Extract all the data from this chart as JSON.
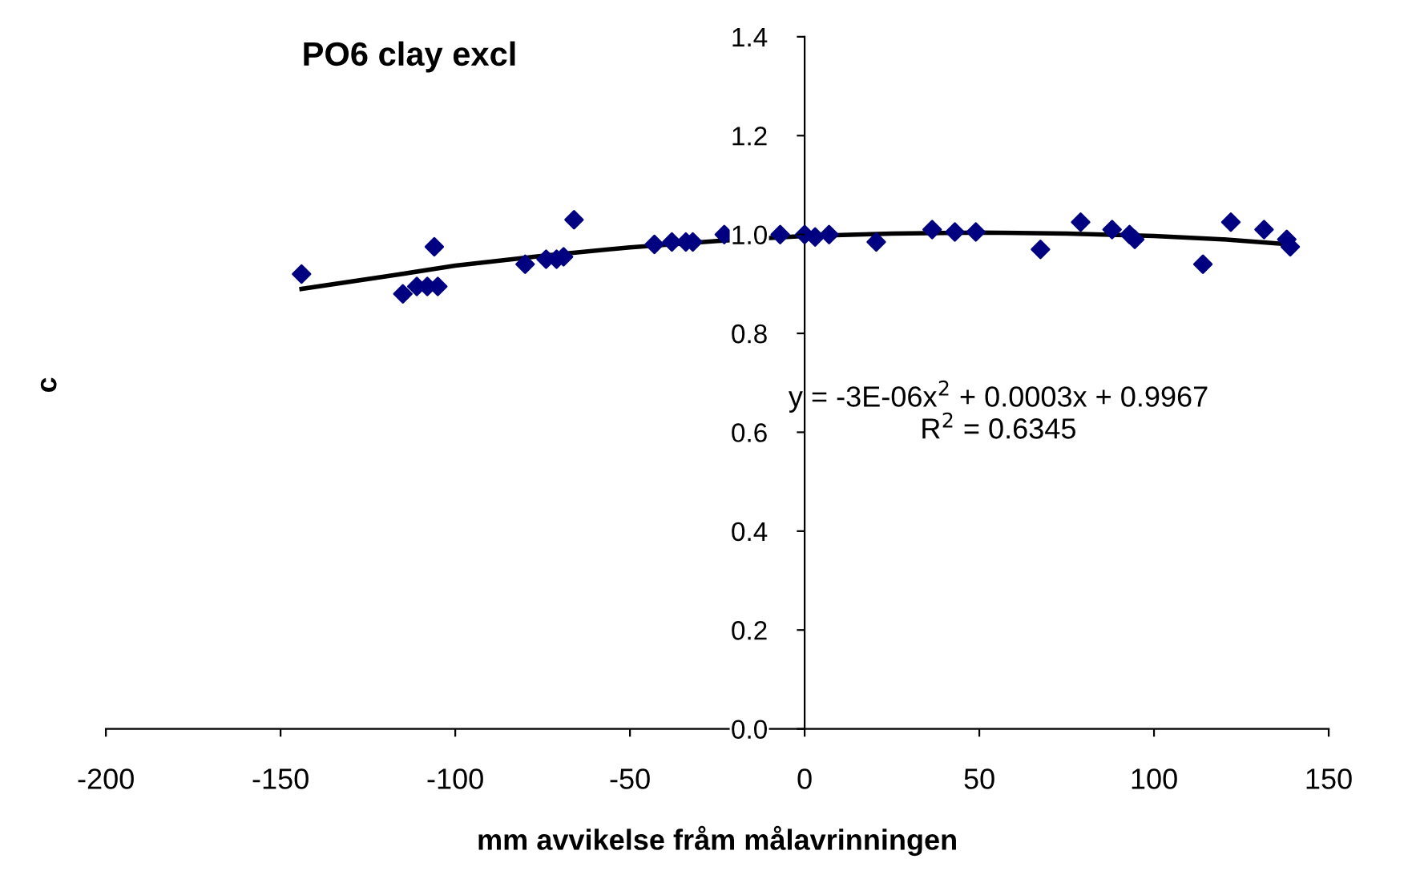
{
  "chart_data": {
    "type": "scatter",
    "title": "PO6 clay excl",
    "xlabel": "mm avvikelse fråm målavrinningen",
    "ylabel": "c",
    "annotations": [
      "y = -3E-06x$^{2}$ + 0.0003x + 0.9967",
      "R$^{2}$ = 0.6345"
    ],
    "xlim": [
      -200,
      150
    ],
    "xticks": [
      -200,
      -150,
      -100,
      -50,
      0,
      50,
      100,
      150
    ],
    "ylim": [
      0,
      1.4
    ],
    "yticks": [
      {
        "value": 0,
        "label": "0.0"
      },
      {
        "value": 0.2,
        "label": "0.2"
      },
      {
        "value": 0.4,
        "label": "0.4"
      },
      {
        "value": 0.6,
        "label": "0.6"
      },
      {
        "value": 0.8,
        "label": "0.8"
      },
      {
        "value": 1.0,
        "label": "1.0"
      },
      {
        "value": 1.2,
        "label": "1.2"
      },
      {
        "value": 1.4,
        "label": "1.4"
      }
    ],
    "grid": false,
    "marker": "diamond",
    "series": [
      {
        "color": "#000080",
        "x": [
          -144,
          -115,
          -111,
          -108,
          -105,
          -106,
          -80,
          -74,
          -71,
          -69,
          -66,
          -43,
          -38,
          -34,
          -32,
          -23,
          -7,
          0,
          3,
          7,
          20.5,
          36.5,
          43,
          49,
          67.5,
          79,
          88,
          93,
          94.5,
          114,
          122,
          131.5,
          138,
          139
        ],
        "values": [
          0.92,
          0.88,
          0.895,
          0.895,
          0.895,
          0.975,
          0.94,
          0.95,
          0.95,
          0.955,
          1.03,
          0.98,
          0.985,
          0.985,
          0.985,
          1.0,
          1.0,
          1.0,
          0.995,
          1.0,
          0.985,
          1.01,
          1.005,
          1.005,
          0.97,
          1.025,
          1.01,
          1.0,
          0.99,
          0.94,
          1.025,
          1.01,
          0.99,
          0.975
        ]
      },
      {
        "type": "line",
        "color": "#000000",
        "marker": "none",
        "x": [
          -144,
          -120,
          -100,
          -75,
          -50,
          -25,
          0,
          25,
          50,
          75,
          100,
          120,
          139
        ],
        "values": [
          0.89,
          0.915,
          0.937,
          0.957,
          0.974,
          0.987,
          0.997,
          1.002,
          1.004,
          1.002,
          0.997,
          0.99,
          0.98
        ]
      }
    ]
  }
}
